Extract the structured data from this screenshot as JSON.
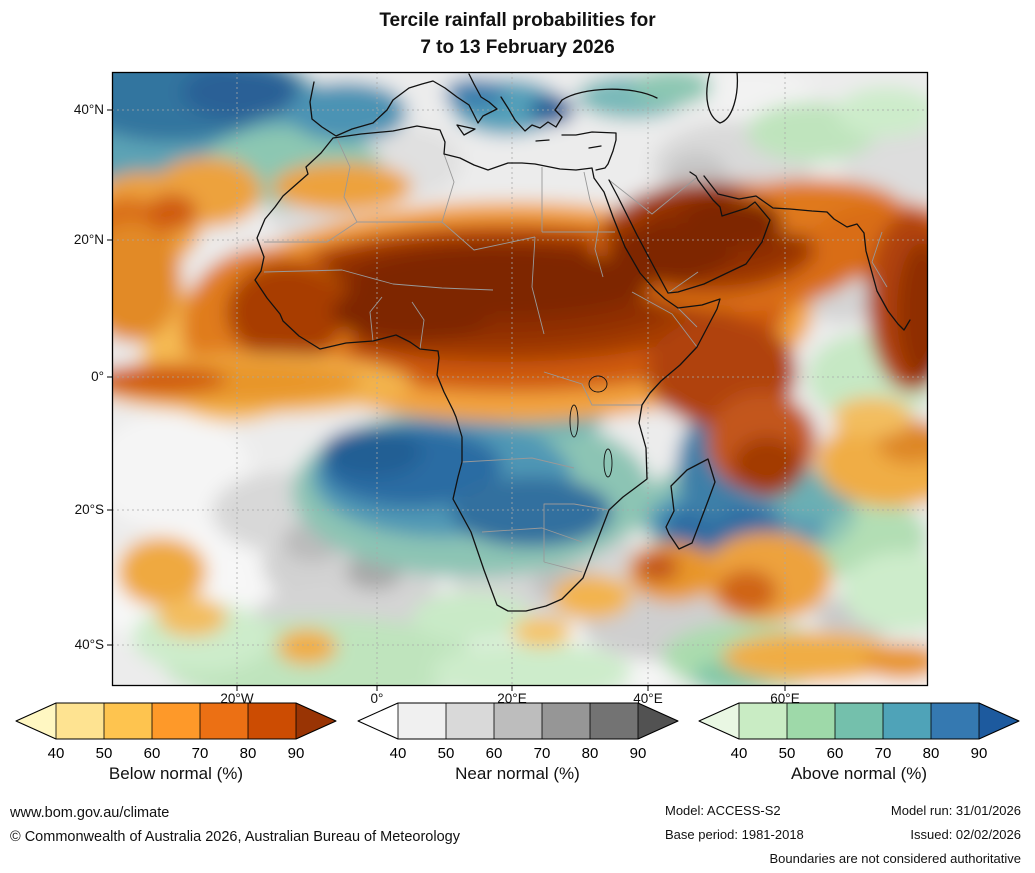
{
  "title": {
    "line1": "Tercile rainfall probabilities for",
    "line2": "7 to 13 February 2026"
  },
  "map": {
    "lat_labels": [
      "40°N",
      "20°N",
      "0°",
      "20°S",
      "40°S"
    ],
    "lon_labels": [
      "20°W",
      "0°",
      "20°E",
      "40°E",
      "60°E"
    ]
  },
  "legends": [
    {
      "label": "Below normal (%)",
      "ticks": [
        "40",
        "50",
        "60",
        "70",
        "80",
        "90"
      ],
      "colors": [
        "#fff7c2",
        "#fee391",
        "#fec44f",
        "#fe9929",
        "#ec7014",
        "#cc4c02",
        "#993404"
      ]
    },
    {
      "label": "Near normal (%)",
      "ticks": [
        "40",
        "50",
        "60",
        "70",
        "80",
        "90"
      ],
      "colors": [
        "#ffffff",
        "#f0f0f0",
        "#d9d9d9",
        "#bdbdbd",
        "#969696",
        "#737373",
        "#525252"
      ]
    },
    {
      "label": "Above normal (%)",
      "ticks": [
        "40",
        "50",
        "60",
        "70",
        "80",
        "90"
      ],
      "colors": [
        "#e9f7e3",
        "#c9ecc4",
        "#9ed9a9",
        "#74c0ac",
        "#4fa3b8",
        "#3579b1",
        "#1d5a9e"
      ]
    }
  ],
  "footer": {
    "website": "www.bom.gov.au/climate",
    "copyright": "© Commonwealth of Australia 2026, Australian Bureau of Meteorology",
    "model": "Model: ACCESS-S2",
    "model_run": "Model run: 31/01/2026",
    "base_period": "Base period: 1981-2018",
    "issued": "Issued: 02/02/2026",
    "disclaimer": "Boundaries are not considered authoritative"
  }
}
